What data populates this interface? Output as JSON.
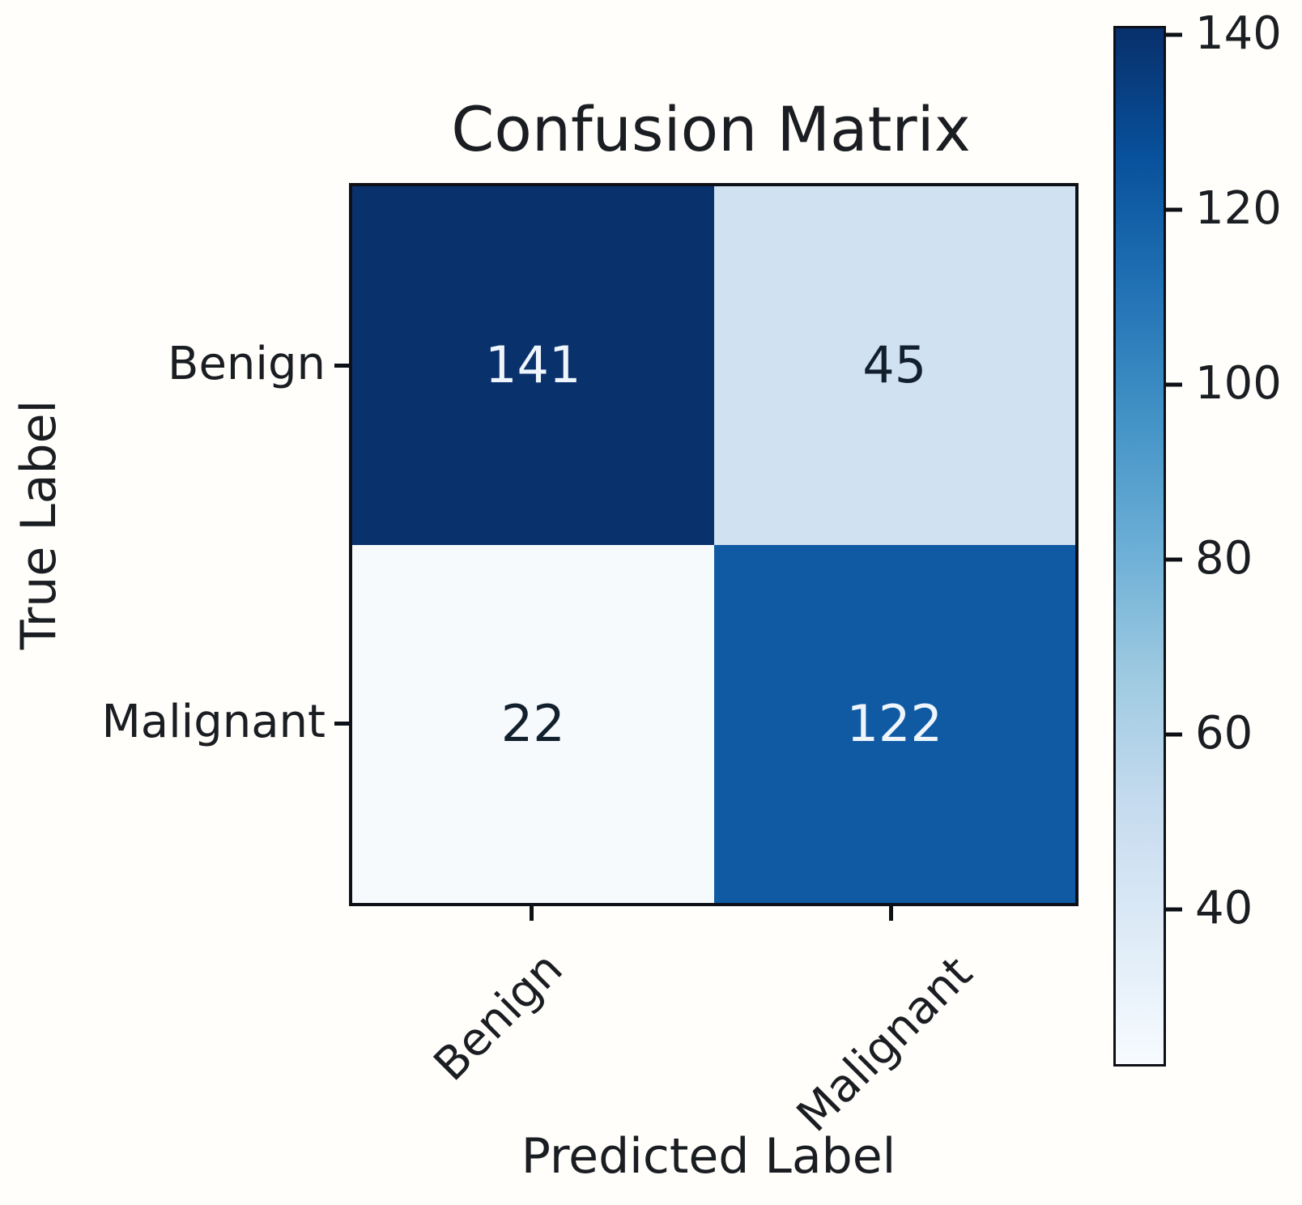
{
  "chart_data": {
    "type": "heatmap",
    "title": "Confusion Matrix",
    "xlabel": "Predicted Label",
    "ylabel": "True Label",
    "x_categories": [
      "Benign",
      "Malignant"
    ],
    "y_categories": [
      "Benign",
      "Malignant"
    ],
    "matrix": [
      [
        141,
        45
      ],
      [
        22,
        122
      ]
    ],
    "colormap": "Blues",
    "vmin": 22,
    "vmax": 141,
    "colorbar_ticks": [
      140,
      120,
      100,
      80,
      60,
      40
    ],
    "colorbar_position": "right",
    "cell_colors": [
      [
        "#09316b",
        "#d0e1f2"
      ],
      [
        "#f6fafd",
        "#0f5aa3"
      ]
    ],
    "cell_text_colors": [
      [
        "#eff5fc",
        "#12202e"
      ],
      [
        "#12202e",
        "#eff5fc"
      ]
    ],
    "colormap_stops_top_to_bottom": [
      "#08306b",
      "#08519c",
      "#2171b5",
      "#4292c6",
      "#6baed6",
      "#9ecae1",
      "#c6dbef",
      "#deebf7",
      "#f7fbff"
    ],
    "axis_color": "#0d1117",
    "background_color": "#fffefa",
    "grid": false
  }
}
